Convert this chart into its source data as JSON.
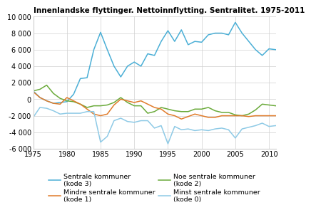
{
  "title": "Innenlandske flyttinger. Nettoinnflytting. Sentralitet. 1975-2011",
  "years": [
    1975,
    1976,
    1977,
    1978,
    1979,
    1980,
    1981,
    1982,
    1983,
    1984,
    1985,
    1986,
    1987,
    1988,
    1989,
    1990,
    1991,
    1992,
    1993,
    1994,
    1995,
    1996,
    1997,
    1998,
    1999,
    2000,
    2001,
    2002,
    2003,
    2004,
    2005,
    2006,
    2007,
    2008,
    2009,
    2010,
    2011
  ],
  "kode3": [
    1000,
    200,
    -200,
    -500,
    -400,
    -300,
    600,
    2500,
    2600,
    6000,
    8100,
    6000,
    4000,
    2700,
    4000,
    4500,
    4000,
    5500,
    5300,
    7000,
    8300,
    7000,
    8400,
    6600,
    7000,
    6900,
    7800,
    8000,
    8000,
    7800,
    9300,
    8000,
    7000,
    6000,
    5300,
    6100,
    6000
  ],
  "kode2": [
    1000,
    1200,
    1700,
    700,
    100,
    -200,
    -300,
    -600,
    -1000,
    -800,
    -800,
    -700,
    -400,
    200,
    -400,
    -800,
    -800,
    -1700,
    -1500,
    -1000,
    -1200,
    -1400,
    -1500,
    -1500,
    -1200,
    -1200,
    -1000,
    -1400,
    -1600,
    -1600,
    -1900,
    -2000,
    -1800,
    -1300,
    -600,
    -700,
    -800
  ],
  "kode1": [
    900,
    200,
    -200,
    -500,
    -600,
    200,
    -200,
    -600,
    -1200,
    -1800,
    -2000,
    -1800,
    -700,
    0,
    -200,
    -400,
    -200,
    -600,
    -1000,
    -1200,
    -1800,
    -2000,
    -2400,
    -2100,
    -1800,
    -2000,
    -2200,
    -2200,
    -2000,
    -2000,
    -2000,
    -2000,
    -2100,
    -2000,
    -2000,
    -2000,
    -2000
  ],
  "kode0": [
    -2200,
    -1000,
    -1100,
    -1400,
    -1800,
    -1700,
    -1700,
    -1700,
    -1500,
    -1500,
    -5200,
    -4500,
    -2600,
    -2300,
    -2700,
    -2800,
    -2600,
    -2600,
    -3500,
    -3200,
    -5400,
    -3300,
    -3700,
    -3600,
    -3800,
    -3700,
    -3800,
    -3600,
    -3500,
    -3700,
    -4700,
    -3600,
    -3400,
    -3200,
    -2900,
    -3300,
    -3200
  ],
  "ylim": [
    -6000,
    10000
  ],
  "yticks": [
    -6000,
    -4000,
    -2000,
    0,
    2000,
    4000,
    6000,
    8000,
    10000
  ],
  "xticks": [
    1975,
    1980,
    1985,
    1990,
    1995,
    2000,
    2005,
    2010
  ],
  "xlim": [
    1975,
    2011
  ],
  "color_kode3": "#4bafd6",
  "color_kode2": "#6aaa3a",
  "color_kode1": "#e07b2a",
  "color_kode0": "#8ecae6",
  "legend_kode3": "Sentrale kommuner\n(kode 3)",
  "legend_kode2": "Noe sentrale kommuner\n(kode 2)",
  "legend_kode1": "Mindre sentrale kommuner\n(kode 1)",
  "legend_kode0": "Minst sentrale kommuner\n(kode 0)",
  "title_fontsize": 7.5,
  "tick_fontsize": 7,
  "legend_fontsize": 6.8,
  "linewidth": 1.1
}
